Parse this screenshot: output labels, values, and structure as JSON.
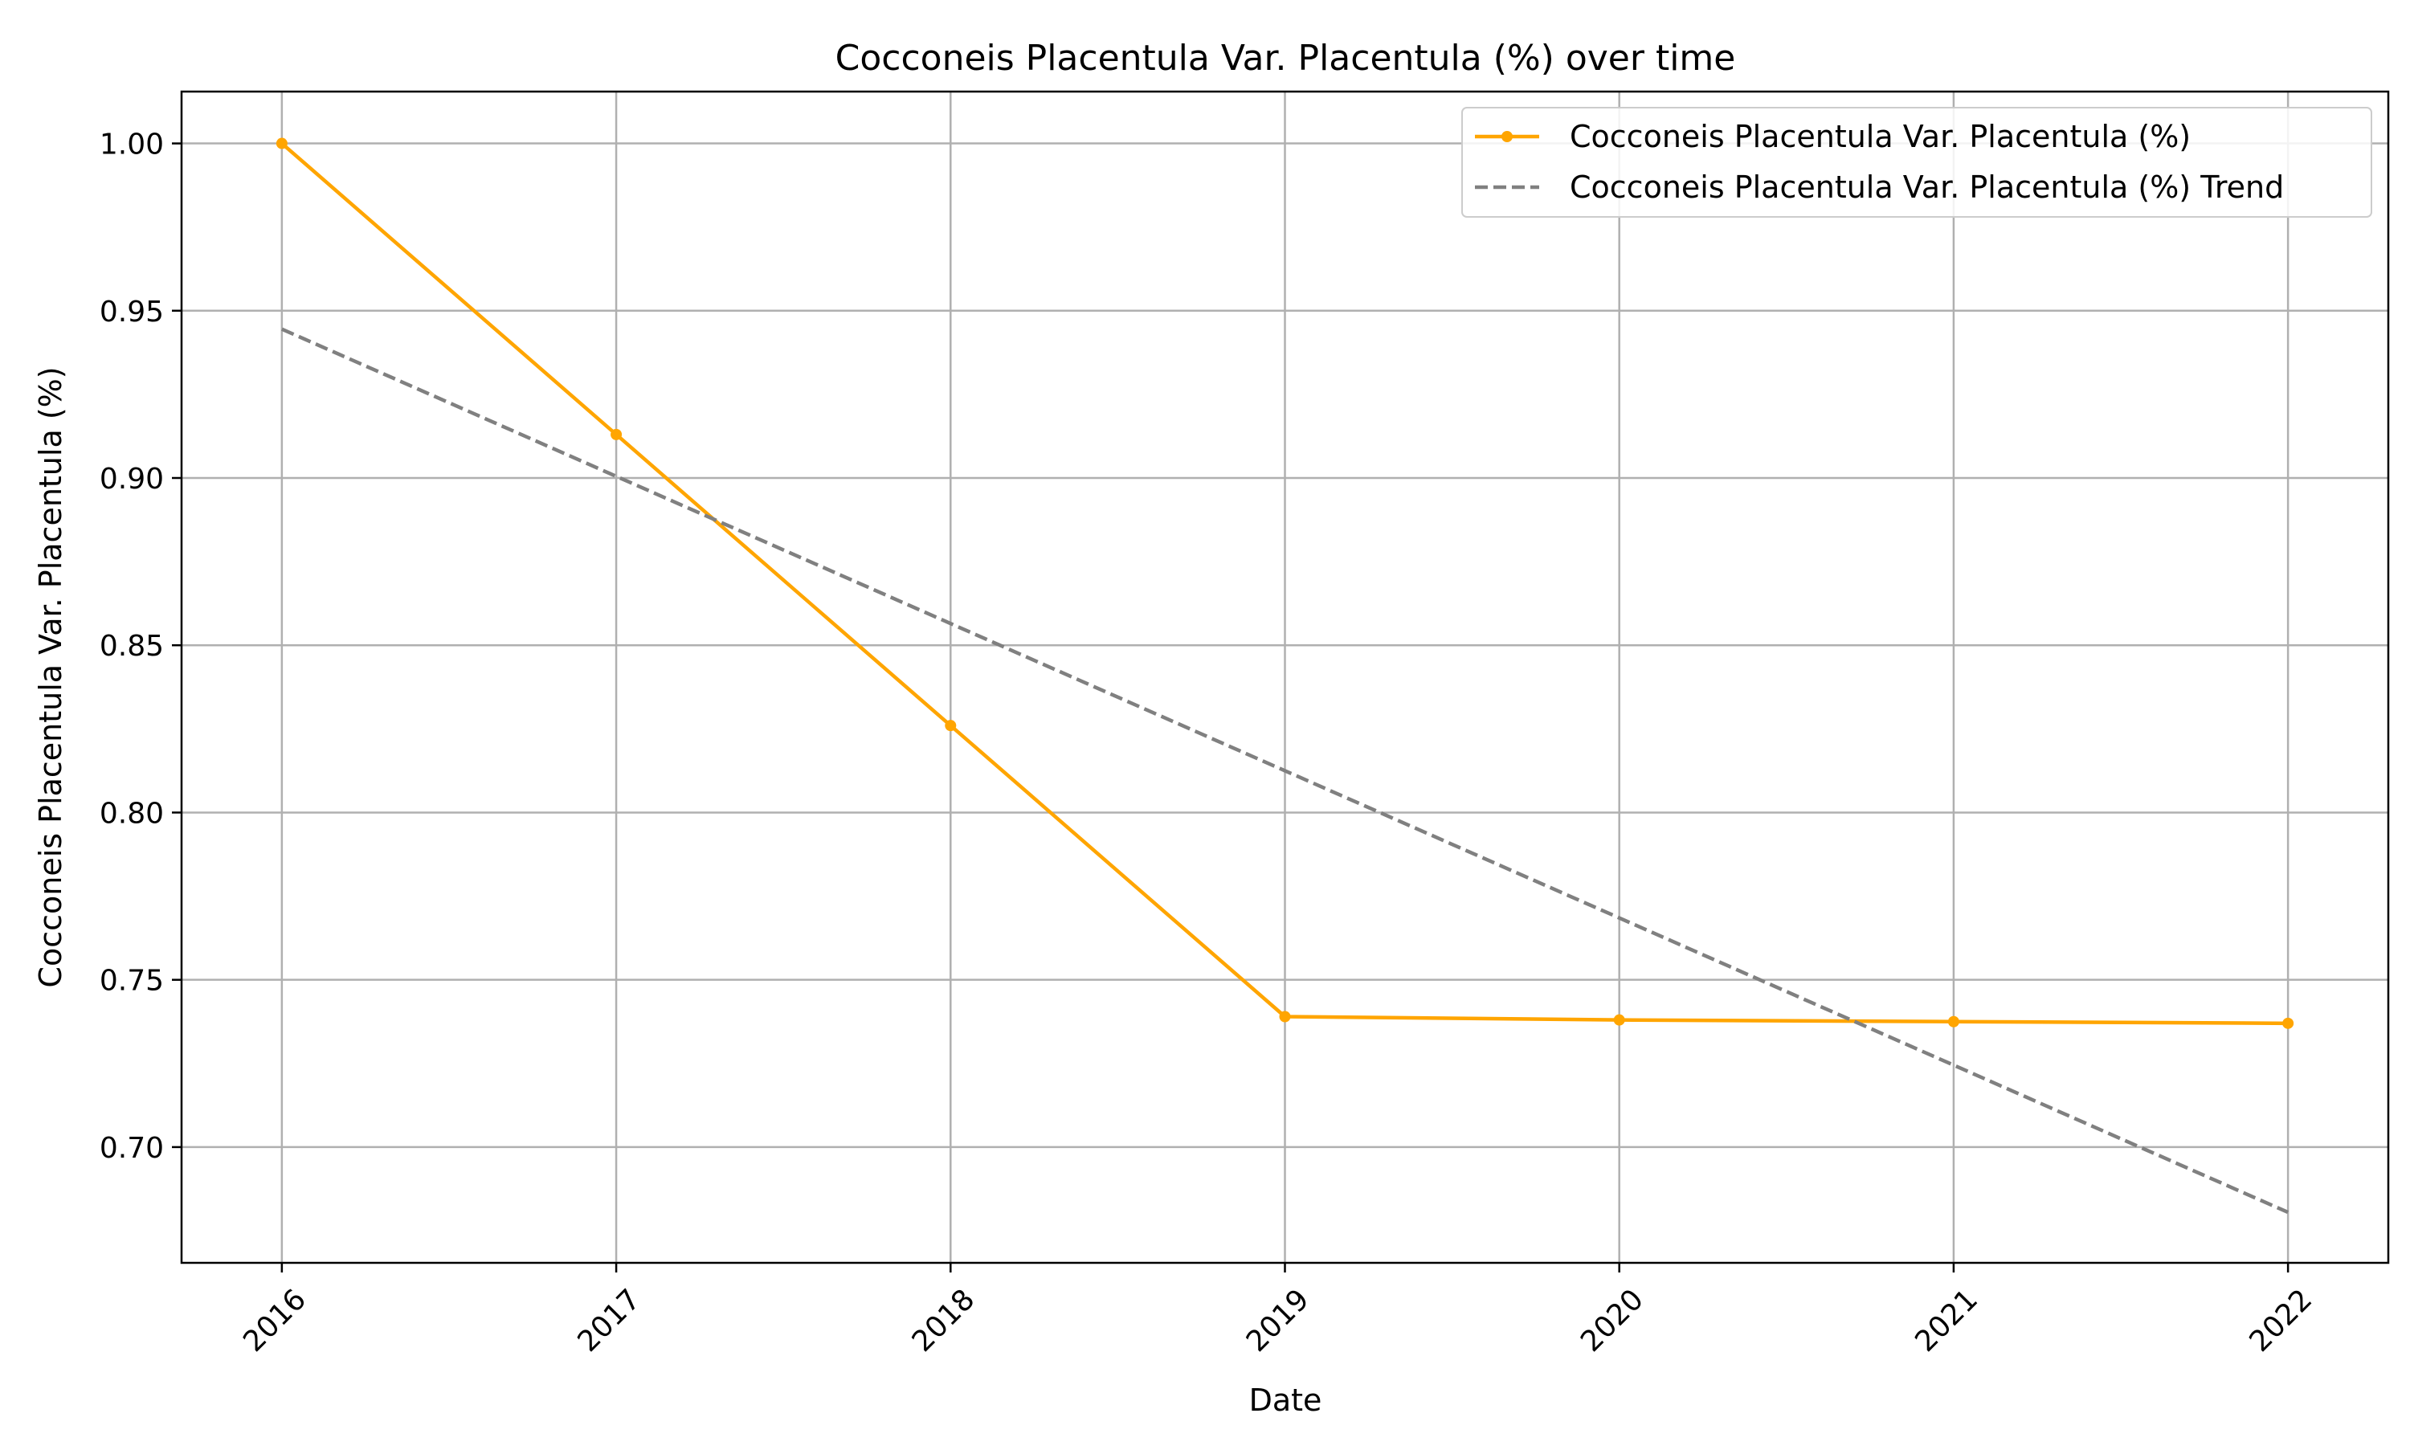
{
  "chart_data": {
    "type": "line",
    "title": "Cocconeis Placentula Var. Placentula (%) over time",
    "xlabel": "Date",
    "ylabel": "Cocconeis Placentula Var. Placentula (%)",
    "x": [
      "2016",
      "2017",
      "2018",
      "2019",
      "2020",
      "2021",
      "2022"
    ],
    "xlim": [
      2015.7,
      2022.3
    ],
    "ylim": [
      0.6654,
      1.0155
    ],
    "yticks": [
      0.7,
      0.75,
      0.8,
      0.85,
      0.9,
      0.95,
      1.0
    ],
    "ytick_labels": [
      "0.70",
      "0.75",
      "0.80",
      "0.85",
      "0.90",
      "0.95",
      "1.00"
    ],
    "grid": true,
    "legend_position": "top-right",
    "series": [
      {
        "name": "Cocconeis Placentula Var. Placentula (%)",
        "color": "#FFA500",
        "style": "solid-with-markers",
        "values": [
          1.0,
          0.913,
          0.826,
          0.739,
          0.738,
          0.7375,
          0.737
        ]
      },
      {
        "name": "Cocconeis Placentula Var. Placentula (%) Trend",
        "color": "#808080",
        "style": "dashed",
        "values": [
          0.9445,
          0.9005,
          0.8565,
          0.8125,
          0.7685,
          0.7245,
          0.6805
        ]
      }
    ]
  }
}
